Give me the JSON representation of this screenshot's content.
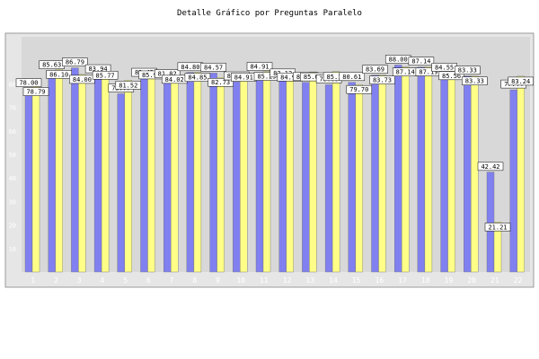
{
  "chart_data": {
    "type": "bar",
    "title": "Detalle Gráfico por Preguntas Paralelo",
    "xlabel": "",
    "ylabel": "",
    "categories": [
      "1",
      "2",
      "3",
      "4",
      "5",
      "6",
      "7",
      "8",
      "9",
      "10",
      "11",
      "12",
      "13",
      "14",
      "15",
      "16",
      "17",
      "18",
      "19",
      "20",
      "21",
      "22"
    ],
    "ylim": [
      0,
      100
    ],
    "yticks": [
      10,
      20,
      30,
      40,
      50,
      60,
      70,
      80
    ],
    "grid": false,
    "legend": "none",
    "series": [
      {
        "values": [
          78.0,
          85.63,
          86.79,
          83.94,
          75.77,
          82.42,
          81.82,
          84.8,
          84.57,
          80.91,
          84.91,
          82.12,
          80.61,
          79.6,
          80.61,
          83.69,
          88.0,
          87.14,
          84.55,
          83.33,
          42.42,
          77.44
        ]
      },
      {
        "values": [
          78.79,
          86.1,
          84.0,
          85.77,
          81.52,
          85.9,
          84.02,
          84.85,
          82.73,
          84.91,
          85.29,
          84.98,
          85.07,
          85.19,
          79.7,
          83.73,
          87.14,
          87.19,
          85.56,
          83.33,
          21.21,
          83.24
        ]
      }
    ],
    "colors": {
      "series1": "#8080f0",
      "series2": "#ffff88",
      "plot_bg": "#d8d8d8",
      "frame": "#888888",
      "label_bg": "#ffffff"
    }
  }
}
